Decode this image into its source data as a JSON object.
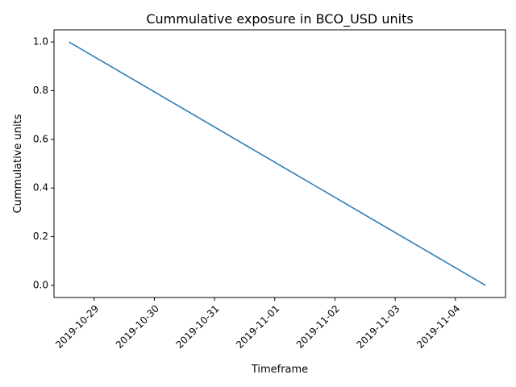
{
  "chart_data": {
    "type": "line",
    "title": "Cummulative exposure in BCO_USD units",
    "xlabel": "Timeframe",
    "ylabel": "Cummulative units",
    "x_ticks": [
      "2019-10-29",
      "2019-10-30",
      "2019-10-31",
      "2019-11-01",
      "2019-11-02",
      "2019-11-03",
      "2019-11-04"
    ],
    "y_ticks": [
      "0.0",
      "0.2",
      "0.4",
      "0.6",
      "0.8",
      "1.0"
    ],
    "xlim": [
      "2019-10-28T08:00",
      "2019-11-04T20:00"
    ],
    "ylim": [
      -0.05,
      1.05
    ],
    "grid": false,
    "series": [
      {
        "color": "#1f77b4",
        "points": [
          {
            "x": "2019-10-28T14:00",
            "y": 1.0
          },
          {
            "x": "2019-11-04T12:00",
            "y": 0.0
          }
        ]
      }
    ]
  }
}
